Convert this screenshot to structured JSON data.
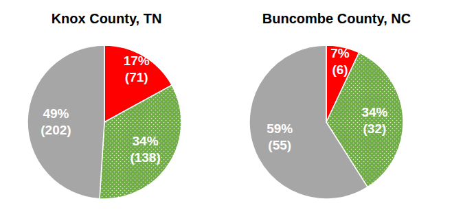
{
  "chart_data": [
    {
      "type": "pie",
      "title": "Knox County, TN",
      "values": [
        17,
        34,
        49
      ],
      "value_labels": [
        "17%",
        "34%",
        "49%"
      ],
      "counts": [
        71,
        138,
        202
      ],
      "count_labels": [
        "(71)",
        "(138)",
        "(202)"
      ],
      "colors": [
        "#ff0000",
        "#70ad47",
        "#a6a6a6"
      ],
      "data_labels": true
    },
    {
      "type": "pie",
      "title": "Buncombe County, NC",
      "values": [
        7,
        34,
        59
      ],
      "value_labels": [
        "7%",
        "34%",
        "59%"
      ],
      "counts": [
        6,
        32,
        55
      ],
      "count_labels": [
        "(6)",
        "(32)",
        "(55)"
      ],
      "colors": [
        "#ff0000",
        "#70ad47",
        "#a6a6a6"
      ],
      "data_labels": true
    }
  ]
}
